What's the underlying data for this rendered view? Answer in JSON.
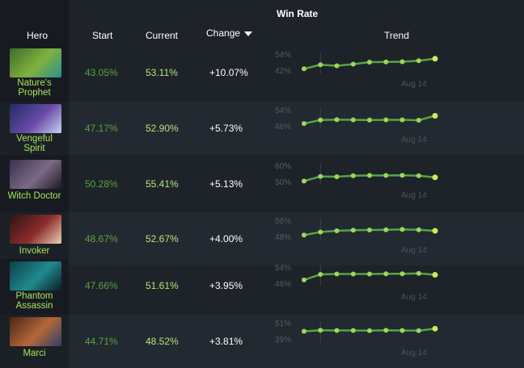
{
  "header": {
    "title": "Win Rate",
    "columns": {
      "hero": "Hero",
      "start": "Start",
      "current": "Current",
      "change": "Change",
      "trend": "Trend"
    },
    "sort_column": "change",
    "sort_direction": "descending"
  },
  "colors": {
    "background": "#1e2329",
    "hero_name": "#a7e35a",
    "start_value": "#5aa243",
    "current_value": "#b6e37a",
    "trend_line": "#5aa243",
    "trend_point": "#9fd65a",
    "trend_last_point": "#c3f05a"
  },
  "rows": [
    {
      "hero": "Nature's Prophet",
      "name_lines": [
        "Nature's",
        "Prophet"
      ],
      "start": "43.05%",
      "current": "53.11%",
      "change": "+10.07%",
      "trend": {
        "ymin_label": "42%",
        "ymax_label": "54%",
        "ylim": [
          42,
          54
        ],
        "values": [
          43.05,
          46.0,
          45.3,
          46.5,
          48.0,
          48.2,
          48.3,
          49.0,
          50.5
        ],
        "date_label": "Aug 14"
      }
    },
    {
      "hero": "Vengeful Spirit",
      "name_lines": [
        "Vengeful",
        "Spirit"
      ],
      "start": "47.17%",
      "current": "52.90%",
      "change": "+5.73%",
      "trend": {
        "ymin_label": "46%",
        "ymax_label": "54%",
        "ylim": [
          46,
          54
        ],
        "values": [
          47.17,
          48.9,
          49.1,
          49.0,
          48.9,
          49.0,
          49.0,
          48.8,
          51.0
        ],
        "date_label": "Aug 14"
      }
    },
    {
      "hero": "Witch Doctor",
      "name_lines": [
        "Witch Doctor"
      ],
      "start": "50.28%",
      "current": "55.41%",
      "change": "+5.13%",
      "trend": {
        "ymin_label": "50%",
        "ymax_label": "60%",
        "ylim": [
          50,
          60
        ],
        "values": [
          50.28,
          53.2,
          53.0,
          53.6,
          53.8,
          53.8,
          53.9,
          53.6,
          52.6
        ],
        "date_label": "Aug 14"
      }
    },
    {
      "hero": "Invoker",
      "name_lines": [
        "Invoker"
      ],
      "start": "48.67%",
      "current": "52.67%",
      "change": "+4.00%",
      "trend": {
        "ymin_label": "48%",
        "ymax_label": "56%",
        "ylim": [
          48,
          56
        ],
        "values": [
          48.67,
          50.2,
          50.8,
          51.1,
          51.2,
          51.3,
          51.5,
          51.3,
          50.8
        ],
        "date_label": "Aug 14"
      }
    },
    {
      "hero": "Phantom Assassin",
      "name_lines": [
        "Phantom",
        "Assassin"
      ],
      "start": "47.66%",
      "current": "51.61%",
      "change": "+3.95%",
      "trend": {
        "ymin_label": "46%",
        "ymax_label": "54%",
        "ylim": [
          46,
          54
        ],
        "values": [
          47.66,
          50.4,
          50.6,
          50.6,
          50.6,
          50.7,
          50.7,
          50.9,
          50.2
        ],
        "date_label": "Aug 14"
      }
    },
    {
      "hero": "Marci",
      "name_lines": [
        "Marci"
      ],
      "start": "44.71%",
      "current": "48.52%",
      "change": "+3.81%",
      "trend": {
        "ymin_label": "39%",
        "ymax_label": "51%",
        "ylim": [
          39,
          51
        ],
        "values": [
          44.71,
          45.4,
          45.3,
          45.3,
          45.2,
          45.4,
          45.3,
          45.1,
          46.6
        ],
        "date_label": "Aug 14"
      }
    }
  ]
}
